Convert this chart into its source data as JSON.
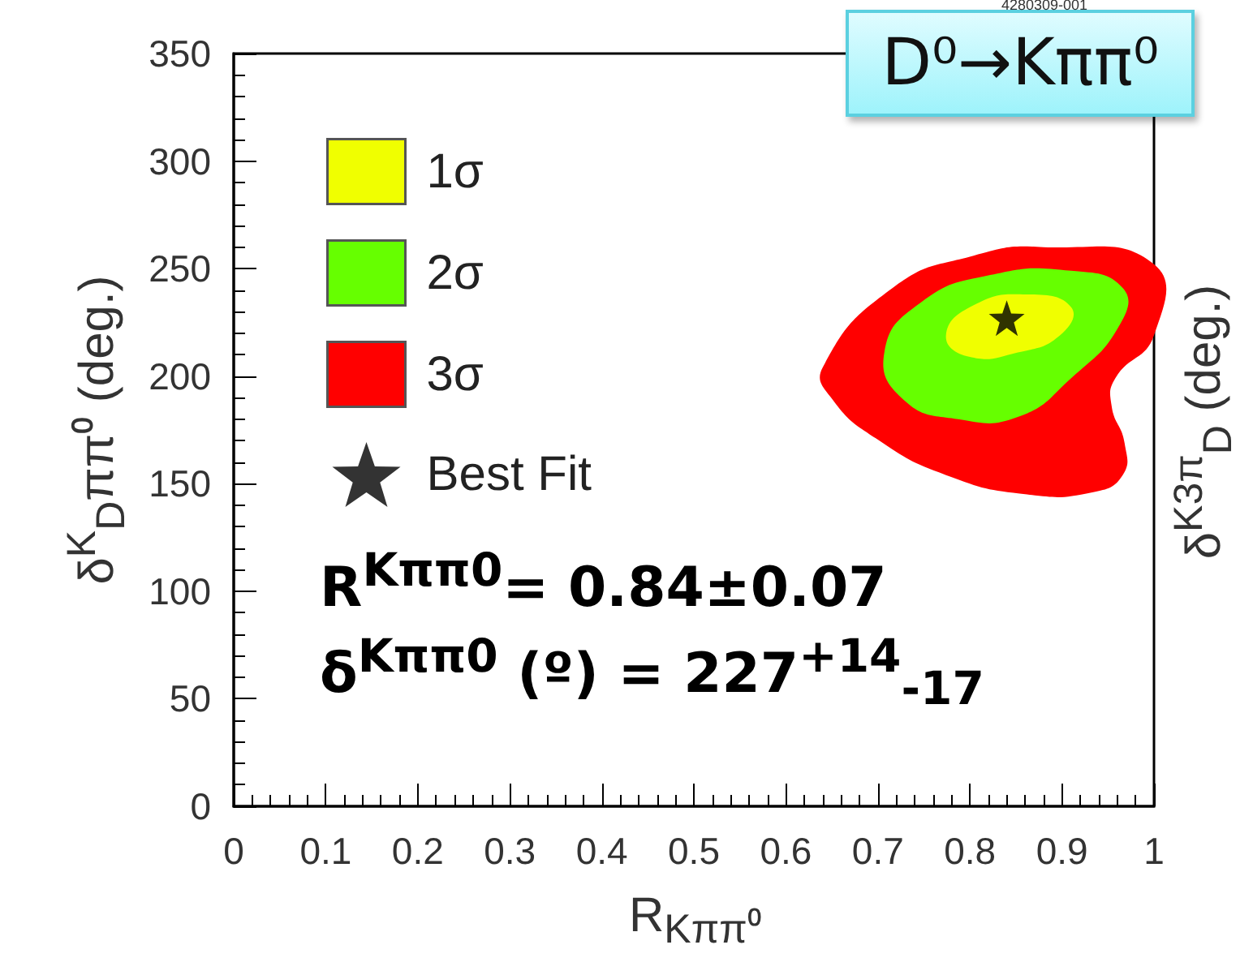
{
  "chart_data": {
    "type": "area",
    "title": "D⁰→Kππ⁰",
    "xlabel": "R$_{Kππ⁰}$",
    "ylabel": "δ$^{K}$$_{D}$ππ⁰ (deg.)",
    "y2label": "δ$^{K3π}$$_{D}$ (deg.)",
    "annotations": [
      "R$^{Kππ0}$= 0.84±0.07",
      "δ$^{Kππ0}$ (º) = 227$^{+14}$$_{-17}$",
      "4280309-001"
    ],
    "xlim": [
      0,
      1
    ],
    "xticks": [
      0,
      0.1,
      0.2,
      0.3,
      0.4,
      0.5,
      0.6,
      0.7,
      0.8,
      0.9,
      1
    ],
    "ylim": [
      0,
      350
    ],
    "yticks": [
      0,
      50,
      100,
      150,
      200,
      250,
      300,
      350
    ],
    "grid": false,
    "legend": "top left",
    "series": [
      {
        "name": "1σ",
        "color": "#f0ff00",
        "x": [
          0.774,
          0.804,
          0.862,
          0.91,
          0.898,
          0.852,
          0.799
        ],
        "values": [
          219,
          233,
          238,
          232,
          219,
          211,
          209
        ]
      },
      {
        "name": "2σ",
        "color": "#66ff00",
        "x": [
          0.707,
          0.746,
          0.822,
          0.91,
          0.966,
          0.963,
          0.91,
          0.852,
          0.787,
          0.728
        ],
        "values": [
          211,
          234,
          247,
          249,
          241,
          224,
          199,
          181,
          180,
          189
        ]
      },
      {
        "name": "3σ",
        "color": "#ff0000",
        "x": [
          0.64,
          0.716,
          0.804,
          0.88,
          1.0,
          1.0,
          0.958,
          0.954,
          0.968,
          0.966,
          0.933,
          0.862,
          0.774,
          0.698,
          0.651
        ],
        "values": [
          204,
          241,
          256,
          260,
          252,
          219,
          199,
          186,
          169,
          154,
          146,
          145,
          154,
          171,
          189
        ]
      },
      {
        "name": "Best Fit",
        "type": "scatter",
        "marker": "star",
        "color": "#000000",
        "x": [
          0.84
        ],
        "values": [
          227
        ]
      }
    ]
  }
}
